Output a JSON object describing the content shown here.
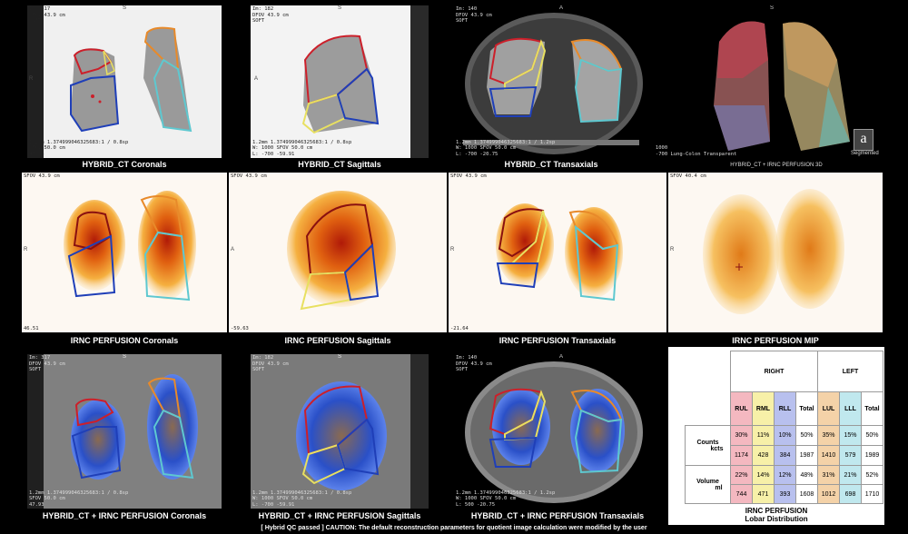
{
  "rows": {
    "row1": {
      "coronal": {
        "caption": "HYBRID_CT Coronals",
        "tl": "Im: 317\nDFOV 43.9 cm\nSOFT",
        "bl": "1.2mm 1.374999046325683:1 / 0.8sp\nSFOV 50.0 cm\n47.93",
        "orient": {
          "top": "S",
          "bottom": "I",
          "left": "R",
          "right": "L"
        }
      },
      "sagittal": {
        "caption": "HYBRID_CT Sagittals",
        "tl": "Im: 182\nDFOV 43.9 cm\nSOFT",
        "bl": "1.2mm 1.374999046325683:1 / 0.8sp\nW: 1000 SFOV 50.0 cm\nL: -700 -59.91",
        "orient": {
          "top": "S",
          "bottom": "I",
          "left": "A",
          "right": "P"
        }
      },
      "transaxial": {
        "caption": "HYBRID_CT Transaxials",
        "tl": "Im: 140\nDFOV 43.9 cm\nSOFT",
        "bl": "1.2mm 1.374999046325683:1 / 1.2sp\nW: 1000 SFOV 50.0 cm\nL: -700 -20.75",
        "orient": {
          "top": "A",
          "bottom": "P",
          "left": "R",
          "right": "L"
        }
      },
      "render3d": {
        "caption": "HYBRID_CT + IRNC PERFUSION 3D",
        "bl": "W: 1000\nL: -700 Lung-Colon Transparent",
        "orient": {
          "top": "S",
          "bottom": "I",
          "left": "R",
          "right": "L"
        },
        "badge": "a",
        "segmented": "Segmented"
      }
    },
    "row2": {
      "coronal": {
        "caption": "IRNC PERFUSION Coronals",
        "tl": "SFOV 43.9 cm",
        "bl": "46.51",
        "orient": {
          "top": "S",
          "bottom": "I",
          "left": "R",
          "right": "L"
        }
      },
      "sagittal": {
        "caption": "IRNC PERFUSION Sagittals",
        "tl": "SFOV 43.9 cm",
        "bl": "-59.63",
        "orient": {
          "top": "S",
          "bottom": "I",
          "left": "A",
          "right": "P"
        }
      },
      "transaxial": {
        "caption": "IRNC PERFUSION Transaxials",
        "tl": "SFOV 43.9 cm",
        "bl": "-21.64",
        "orient": {
          "top": "A",
          "bottom": "P",
          "left": "R",
          "right": "L"
        }
      },
      "mip": {
        "caption": "IRNC PERFUSION MIP",
        "tl": "SFOV 40.4 cm",
        "orient": {
          "top": "S",
          "bottom": "I",
          "left": "R",
          "right": "L"
        }
      }
    },
    "row3": {
      "coronal": {
        "caption": "HYBRID_CT + IRNC PERFUSION Coronals",
        "tl": "Im: 317\nDFOV 43.9 cm\nSOFT",
        "bl": "1.2mm 1.374999046325683:1 / 0.8sp\nSFOV 50.0 cm\n47.93",
        "orient": {
          "top": "S",
          "bottom": "I",
          "left": "R",
          "right": "L"
        }
      },
      "sagittal": {
        "caption": "HYBRID_CT + IRNC PERFUSION Sagittals",
        "tl": "Im: 182\nDFOV 43.9 cm\nSOFT",
        "bl": "1.2mm 1.374999046325683:1 / 0.8sp\nW: 1000 SFOV 50.0 cm\nL: -700 -59.91",
        "orient": {
          "top": "S",
          "bottom": "I",
          "left": "A",
          "right": "P"
        }
      },
      "transaxial": {
        "caption": "HYBRID_CT + IRNC PERFUSION Transaxials",
        "tl": "Im: 140\nDFOV 43.9 cm\nSOFT",
        "bl": "1.2mm 1.374999046325683:1 / 1.2sp\nW: 1000 SFOV 50.0 cm\nL: 500 -20.75",
        "orient": {
          "top": "A",
          "bottom": "P",
          "left": "R",
          "right": "L"
        }
      }
    }
  },
  "table": {
    "right_label": "RIGHT",
    "left_label": "LEFT",
    "lobes": [
      "RUL",
      "RML",
      "RLL",
      "Total",
      "LUL",
      "LLL",
      "Total"
    ],
    "counts_label": "Counts",
    "counts_unit": "kcts",
    "counts_pct": [
      "30%",
      "11%",
      "10%",
      "50%",
      "35%",
      "15%",
      "50%"
    ],
    "counts_val": [
      "1174",
      "428",
      "384",
      "1987",
      "1410",
      "579",
      "1989"
    ],
    "volume_label": "Volume",
    "volume_unit": "ml",
    "volume_pct": [
      "22%",
      "14%",
      "12%",
      "48%",
      "31%",
      "21%",
      "52%"
    ],
    "volume_val": [
      "744",
      "471",
      "393",
      "1608",
      "1012",
      "698",
      "1710"
    ],
    "caption_line1": "IRNC PERFUSION",
    "caption_line2": "Lobar Distribution"
  },
  "warning": "[ Hybrid QC passed ]  CAUTION: The default reconstruction parameters for quotient image calculation were modified by the user",
  "colors": {
    "rul": "#cc1f2a",
    "rml": "#e8e060",
    "rll": "#1f3fb8",
    "lul": "#e88a2a",
    "lll": "#5ec8d0"
  }
}
